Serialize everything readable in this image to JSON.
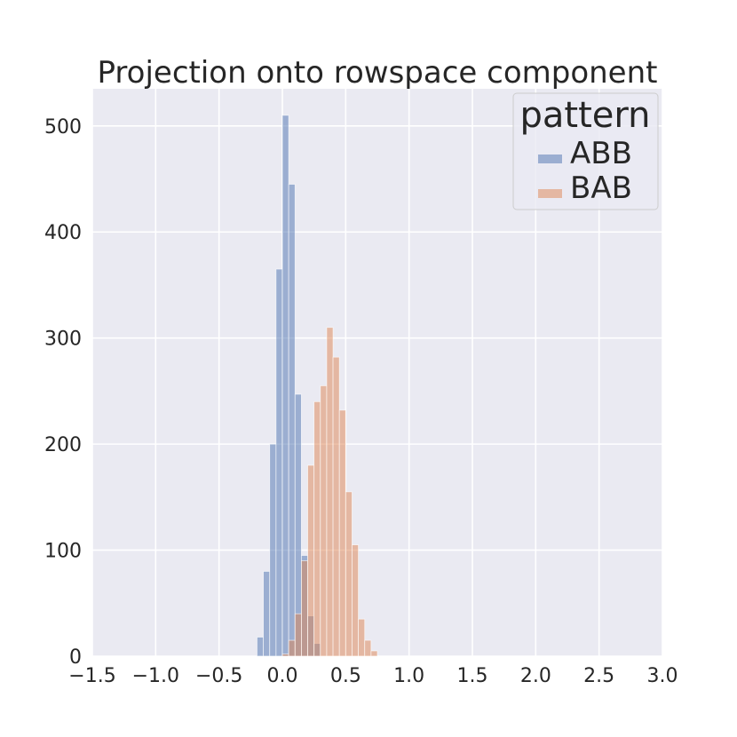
{
  "chart_data": {
    "type": "bar",
    "title": "Projection onto rowspace component",
    "xlabel": "",
    "ylabel": "",
    "xlim": [
      -1.5,
      3.0
    ],
    "ylim": [
      0,
      535
    ],
    "xticks": [
      -1.5,
      -1.0,
      -0.5,
      0.0,
      0.5,
      1.0,
      1.5,
      2.0,
      2.5,
      3.0
    ],
    "xtick_labels": [
      "−1.5",
      "−1.0",
      "−0.5",
      "0.0",
      "0.5",
      "1.0",
      "1.5",
      "2.0",
      "2.5",
      "3.0"
    ],
    "yticks": [
      0,
      100,
      200,
      300,
      400,
      500
    ],
    "ytick_labels": [
      "0",
      "100",
      "200",
      "300",
      "400",
      "500"
    ],
    "grid": true,
    "legend": {
      "title": "pattern",
      "placement": "top-right",
      "entries": [
        "ABB",
        "BAB"
      ]
    },
    "bin_width": 0.05,
    "series": [
      {
        "name": "ABB",
        "color": "#4c72b0",
        "bins": [
          {
            "x0": -0.2,
            "count": 18
          },
          {
            "x0": -0.15,
            "count": 80
          },
          {
            "x0": -0.1,
            "count": 200
          },
          {
            "x0": -0.05,
            "count": 365
          },
          {
            "x0": 0.0,
            "count": 510
          },
          {
            "x0": 0.05,
            "count": 445
          },
          {
            "x0": 0.1,
            "count": 247
          },
          {
            "x0": 0.15,
            "count": 95
          },
          {
            "x0": 0.2,
            "count": 38
          },
          {
            "x0": 0.25,
            "count": 12
          }
        ]
      },
      {
        "name": "BAB",
        "color": "#dd8452",
        "bins": [
          {
            "x0": 0.0,
            "count": 2
          },
          {
            "x0": 0.05,
            "count": 15
          },
          {
            "x0": 0.1,
            "count": 40
          },
          {
            "x0": 0.15,
            "count": 90
          },
          {
            "x0": 0.2,
            "count": 180
          },
          {
            "x0": 0.25,
            "count": 240
          },
          {
            "x0": 0.3,
            "count": 255
          },
          {
            "x0": 0.35,
            "count": 310
          },
          {
            "x0": 0.4,
            "count": 282
          },
          {
            "x0": 0.45,
            "count": 232
          },
          {
            "x0": 0.5,
            "count": 155
          },
          {
            "x0": 0.55,
            "count": 105
          },
          {
            "x0": 0.6,
            "count": 35
          },
          {
            "x0": 0.65,
            "count": 15
          },
          {
            "x0": 0.7,
            "count": 5
          }
        ]
      }
    ],
    "background": "#eaeaf2",
    "grid_color": "#ffffff",
    "text_color": "#262626",
    "bar_opacity": 0.5
  }
}
